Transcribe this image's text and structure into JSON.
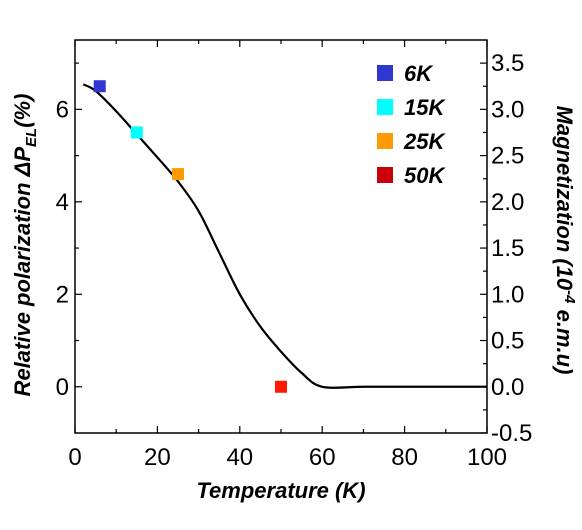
{
  "chart_data": {
    "type": "scatter",
    "xlabel": "Temperature (K)",
    "ylabel": {
      "main": "Relative polarization  ΔP",
      "sub": "EL",
      "tail": "(%)"
    },
    "y2label": {
      "main": "Magnetization  (10",
      "sup": "-4",
      "tail": " e.m.u)"
    },
    "xlim": [
      0,
      100
    ],
    "ylim": [
      -1,
      7.5
    ],
    "y2lim": [
      -0.5,
      3.75
    ],
    "xticks": [
      0,
      20,
      40,
      60,
      80,
      100
    ],
    "yticks": [
      0,
      2,
      4,
      6
    ],
    "y2ticks": [
      -0.5,
      0.0,
      0.5,
      1.0,
      1.5,
      2.0,
      2.5,
      3.0,
      3.5
    ],
    "y2tick_labels": [
      "-0.5",
      "0.0",
      "0.5",
      "1.0",
      "1.5",
      "2.0",
      "2.5",
      "3.0",
      "3.5"
    ],
    "points": [
      {
        "label": "6K",
        "x": 6,
        "y": 6.5,
        "color": "#2f36d2"
      },
      {
        "label": "15K",
        "x": 15,
        "y": 5.5,
        "color": "#00ffff"
      },
      {
        "label": "25K",
        "x": 25,
        "y": 4.6,
        "color": "#ff9a00"
      },
      {
        "label": "50K",
        "x": 50,
        "y": 0.0,
        "color": "#ff1a00"
      }
    ],
    "legend": [
      {
        "label": "6K",
        "color": "#2f36d2"
      },
      {
        "label": "15K",
        "color": "#00ffff"
      },
      {
        "label": "25K",
        "color": "#ff9a00"
      },
      {
        "label": "50K",
        "color": "#c8000a"
      }
    ],
    "magnetization_curve": {
      "axis": "y2",
      "color": "#000000",
      "x": [
        2,
        5,
        10,
        15,
        20,
        25,
        30,
        35,
        40,
        45,
        50,
        55,
        60,
        70,
        80,
        90,
        100
      ],
      "y": [
        3.27,
        3.2,
        2.98,
        2.73,
        2.48,
        2.22,
        1.9,
        1.45,
        1.0,
        0.65,
        0.38,
        0.15,
        0.0,
        0.0,
        0.0,
        0.0,
        0.0
      ]
    },
    "grid": false,
    "legend_position": "top-right"
  }
}
